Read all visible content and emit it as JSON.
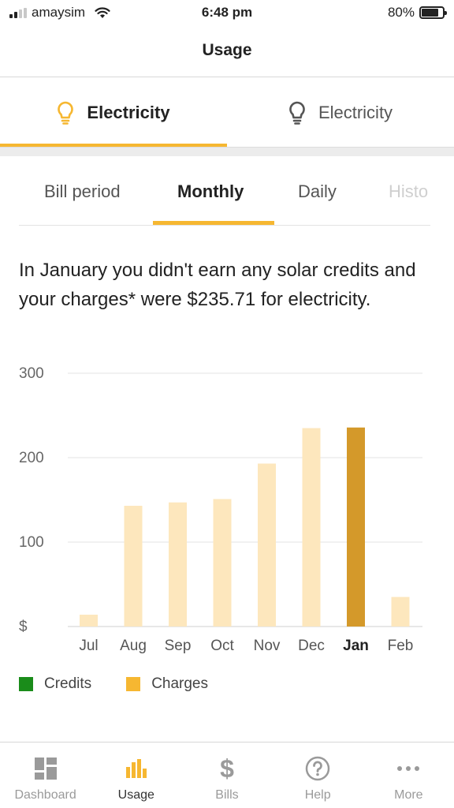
{
  "status_bar": {
    "carrier": "amaysim",
    "time": "6:48 pm",
    "battery_percent": "80%",
    "battery_level": 0.8
  },
  "header": {
    "title": "Usage"
  },
  "account_tabs": [
    {
      "label": "Electricity",
      "icon": "lightbulb-icon",
      "active": true
    },
    {
      "label": "Electricity",
      "icon": "lightbulb-icon",
      "active": false
    }
  ],
  "period_tabs": [
    {
      "label": "Bill period",
      "active": false
    },
    {
      "label": "Monthly",
      "active": true
    },
    {
      "label": "Daily",
      "active": false
    },
    {
      "label": "Histo",
      "active": false
    }
  ],
  "summary_text": "In January you didn't earn any solar credits and your charges* were $235.71 for electricity.",
  "colors": {
    "accent": "#f6b731",
    "bar_light": "#fde7bd",
    "bar_selected": "#d4992a",
    "credits": "#1a8c1a",
    "charges": "#f6b731"
  },
  "chart_data": {
    "type": "bar",
    "categories": [
      "Jul",
      "Aug",
      "Sep",
      "Oct",
      "Nov",
      "Dec",
      "Jan",
      "Feb"
    ],
    "values": [
      14,
      143,
      147,
      151,
      193,
      235,
      235.71,
      35
    ],
    "selected": "Jan",
    "ylim": [
      0,
      300
    ],
    "yticks": [
      0,
      100,
      200,
      300
    ],
    "ytick_labels": [
      "$",
      "100",
      "200",
      "300"
    ],
    "grid": true
  },
  "legend": [
    {
      "label": "Credits",
      "color": "#1a8c1a"
    },
    {
      "label": "Charges",
      "color": "#f6b731"
    }
  ],
  "tab_bar": [
    {
      "label": "Dashboard",
      "icon": "dashboard-icon",
      "active": false
    },
    {
      "label": "Usage",
      "icon": "usage-chart-icon",
      "active": true
    },
    {
      "label": "Bills",
      "icon": "dollar-icon",
      "active": false
    },
    {
      "label": "Help",
      "icon": "help-icon",
      "active": false
    },
    {
      "label": "More",
      "icon": "more-icon",
      "active": false
    }
  ]
}
